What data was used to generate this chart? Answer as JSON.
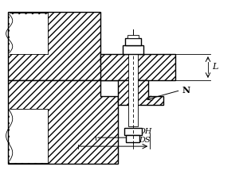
{
  "line_color": "#000000",
  "lw": 1.0,
  "tlw": 0.6,
  "hatch": "////",
  "label_L": "L",
  "label_N": "N",
  "label_DH": "DH",
  "label_DS": "DS",
  "xlim": [
    0,
    10
  ],
  "ylim": [
    0,
    7
  ]
}
